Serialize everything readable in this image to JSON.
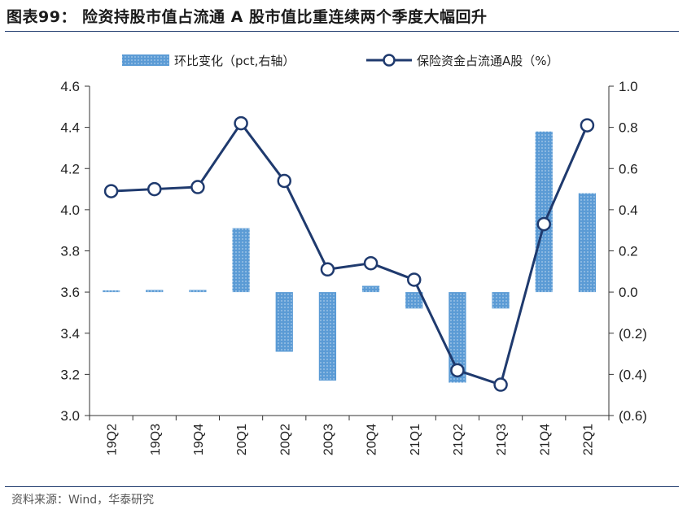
{
  "title": "图表99： 险资持股市值占流通 A 股市值比重连续两个季度大幅回升",
  "source": "资料来源：Wind，华泰研究",
  "colors": {
    "bar": "#5b9bd5",
    "line": "#1f3a6e",
    "rule": "#1f3a6e"
  },
  "chart_data": {
    "type": "bar+line",
    "categories": [
      "19Q2",
      "19Q3",
      "19Q4",
      "20Q1",
      "20Q2",
      "20Q3",
      "20Q4",
      "21Q1",
      "21Q2",
      "21Q3",
      "21Q4",
      "22Q1"
    ],
    "legend": {
      "placement": "top-center"
    },
    "series": [
      {
        "name": "环比变化（pct,右轴）",
        "type": "bar",
        "axis": "right",
        "values": [
          0.0,
          0.01,
          0.01,
          0.31,
          -0.29,
          -0.43,
          0.03,
          -0.08,
          -0.44,
          -0.08,
          0.78,
          0.48
        ]
      },
      {
        "name": "保险资金占流通A股（%）",
        "type": "line",
        "axis": "left",
        "values": [
          4.09,
          4.1,
          4.11,
          4.42,
          4.14,
          3.71,
          3.74,
          3.66,
          3.22,
          3.15,
          3.93,
          4.41
        ]
      }
    ],
    "yleft": {
      "min": 3.0,
      "max": 4.6,
      "ticks": [
        "3.0",
        "3.2",
        "3.4",
        "3.6",
        "3.8",
        "4.0",
        "4.2",
        "4.4",
        "4.6"
      ]
    },
    "yright": {
      "min": -0.6,
      "max": 1.0,
      "ticks": [
        "(0.6)",
        "(0.4)",
        "(0.2)",
        "0.0",
        "0.2",
        "0.4",
        "0.6",
        "0.8",
        "1.0"
      ]
    },
    "grid": false
  }
}
